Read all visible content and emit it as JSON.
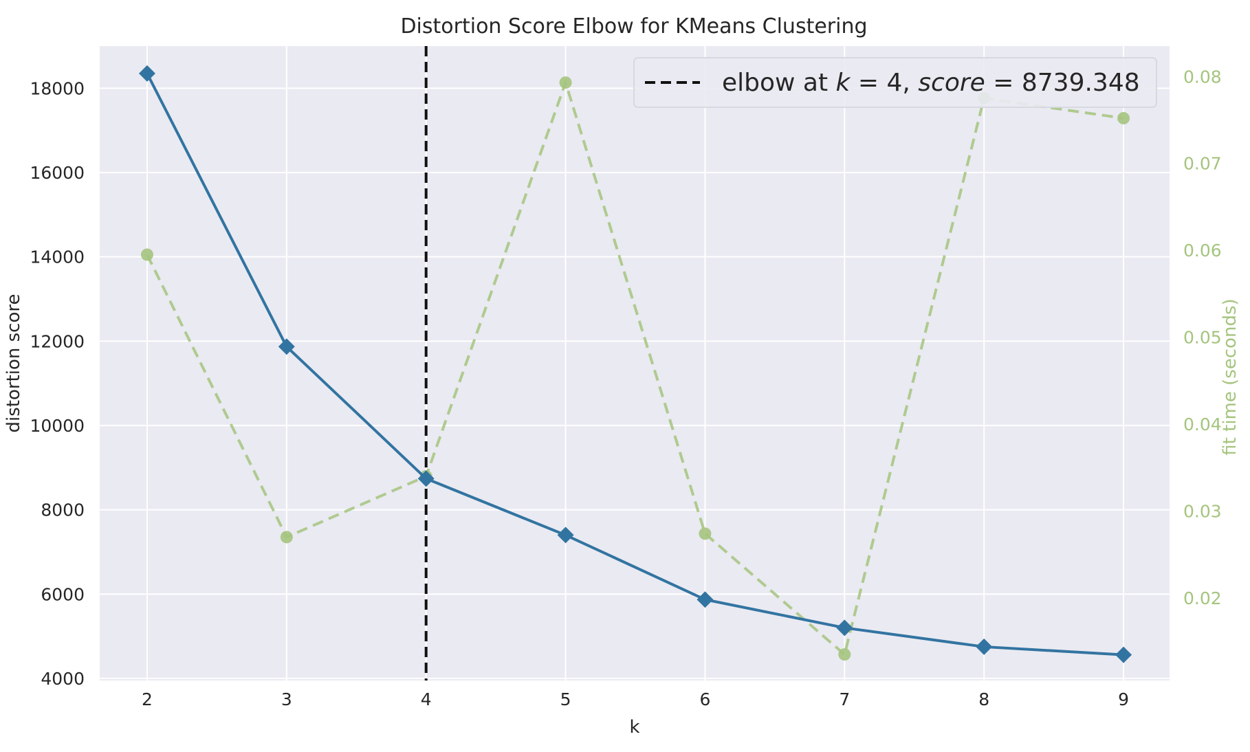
{
  "chart_data": {
    "type": "line",
    "title": "Distortion Score Elbow for KMeans Clustering",
    "xlabel": "k",
    "ylabel": "distortion score",
    "y2label": "fit time (seconds)",
    "x": [
      2,
      3,
      4,
      5,
      6,
      7,
      8,
      9
    ],
    "x_ticks": [
      "2",
      "3",
      "4",
      "5",
      "6",
      "7",
      "8",
      "9"
    ],
    "xlim": [
      1.66,
      9.33
    ],
    "ylim": [
      3950,
      19000
    ],
    "y_ticks": [
      "4000",
      "6000",
      "8000",
      "10000",
      "12000",
      "14000",
      "16000",
      "18000"
    ],
    "y2lim": [
      0.0105,
      0.0835
    ],
    "y2_ticks": [
      "0.02",
      "0.03",
      "0.04",
      "0.05",
      "0.06",
      "0.07",
      "0.08"
    ],
    "grid": true,
    "legend_position": "top-right",
    "series": [
      {
        "axis": "left",
        "values": [
          18350,
          11870,
          8739.348,
          7400,
          5870,
          5200,
          4750,
          4560
        ],
        "color": "#3274a1",
        "marker": "diamond",
        "linestyle": "solid"
      },
      {
        "axis": "right",
        "values": [
          0.0595,
          0.027,
          0.034,
          0.0793,
          0.0274,
          0.0135,
          0.0775,
          0.0752
        ],
        "color": "#a5c47e",
        "marker": "circle",
        "linestyle": "dashed"
      }
    ],
    "elbow": {
      "k": 4,
      "score": "8739.348",
      "legend_prefix": "elbow at ",
      "legend_k_var": "k",
      "legend_eq": " = ",
      "legend_k_value": "4",
      "legend_sep": ", ",
      "legend_score_var": "score",
      "legend_score_eq": " = ",
      "color": "#111111"
    },
    "colors": {
      "plot_background": "#eaeaf2",
      "grid": "#ffffff",
      "text": "#262626"
    }
  }
}
